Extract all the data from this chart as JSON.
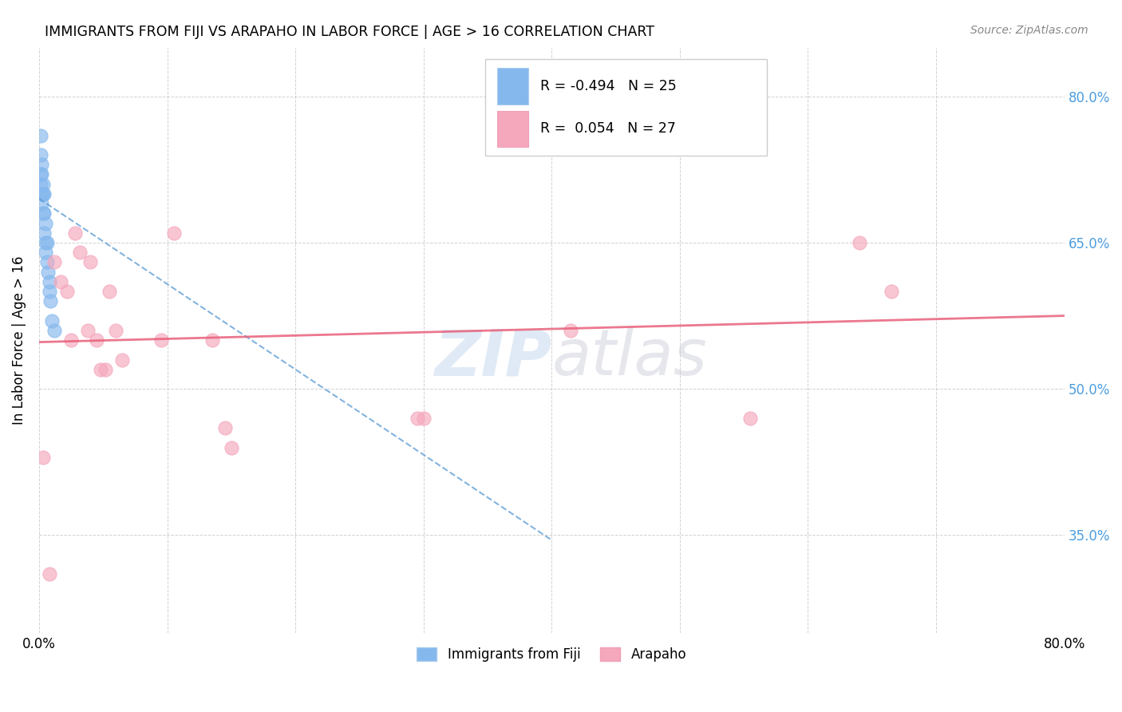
{
  "title": "IMMIGRANTS FROM FIJI VS ARAPAHO IN LABOR FORCE | AGE > 16 CORRELATION CHART",
  "source": "Source: ZipAtlas.com",
  "ylabel": "In Labor Force | Age > 16",
  "xlim": [
    0.0,
    0.8
  ],
  "ylim": [
    0.25,
    0.85
  ],
  "xtick_positions": [
    0.0,
    0.1,
    0.2,
    0.3,
    0.4,
    0.5,
    0.6,
    0.7,
    0.8
  ],
  "xticklabels": [
    "0.0%",
    "",
    "",
    "",
    "",
    "",
    "",
    "",
    "80.0%"
  ],
  "ytick_positions": [
    0.35,
    0.5,
    0.65,
    0.8
  ],
  "ytick_labels": [
    "35.0%",
    "50.0%",
    "65.0%",
    "80.0%"
  ],
  "grid_color": "#cccccc",
  "background_color": "#ffffff",
  "fiji_color": "#85b8ed",
  "arapaho_color": "#f5a7bc",
  "fiji_line_color": "#5a9ad4",
  "arapaho_line_color": "#e8607a",
  "fiji_R": -0.494,
  "fiji_N": 25,
  "arapaho_R": 0.054,
  "arapaho_N": 27,
  "watermark_zip": "ZIP",
  "watermark_atlas": "atlas",
  "fiji_scatter_x": [
    0.001,
    0.001,
    0.001,
    0.001,
    0.002,
    0.002,
    0.002,
    0.002,
    0.003,
    0.003,
    0.003,
    0.004,
    0.004,
    0.004,
    0.005,
    0.005,
    0.005,
    0.006,
    0.006,
    0.007,
    0.008,
    0.008,
    0.009,
    0.01,
    0.012
  ],
  "fiji_scatter_y": [
    0.76,
    0.74,
    0.72,
    0.71,
    0.73,
    0.72,
    0.7,
    0.69,
    0.71,
    0.7,
    0.68,
    0.7,
    0.68,
    0.66,
    0.67,
    0.65,
    0.64,
    0.65,
    0.63,
    0.62,
    0.61,
    0.6,
    0.59,
    0.57,
    0.56
  ],
  "arapaho_scatter_x": [
    0.003,
    0.008,
    0.012,
    0.017,
    0.022,
    0.025,
    0.028,
    0.032,
    0.038,
    0.04,
    0.045,
    0.048,
    0.052,
    0.055,
    0.06,
    0.065,
    0.095,
    0.105,
    0.135,
    0.145,
    0.15,
    0.295,
    0.3,
    0.415,
    0.555,
    0.64,
    0.665
  ],
  "arapaho_scatter_y": [
    0.43,
    0.31,
    0.63,
    0.61,
    0.6,
    0.55,
    0.66,
    0.64,
    0.56,
    0.63,
    0.55,
    0.52,
    0.52,
    0.6,
    0.56,
    0.53,
    0.55,
    0.66,
    0.55,
    0.46,
    0.44,
    0.47,
    0.47,
    0.56,
    0.47,
    0.65,
    0.6
  ],
  "fiji_line_x": [
    0.0,
    0.4
  ],
  "fiji_line_y": [
    0.695,
    0.345
  ],
  "arapaho_line_x": [
    0.0,
    0.8
  ],
  "arapaho_line_y": [
    0.548,
    0.575
  ]
}
